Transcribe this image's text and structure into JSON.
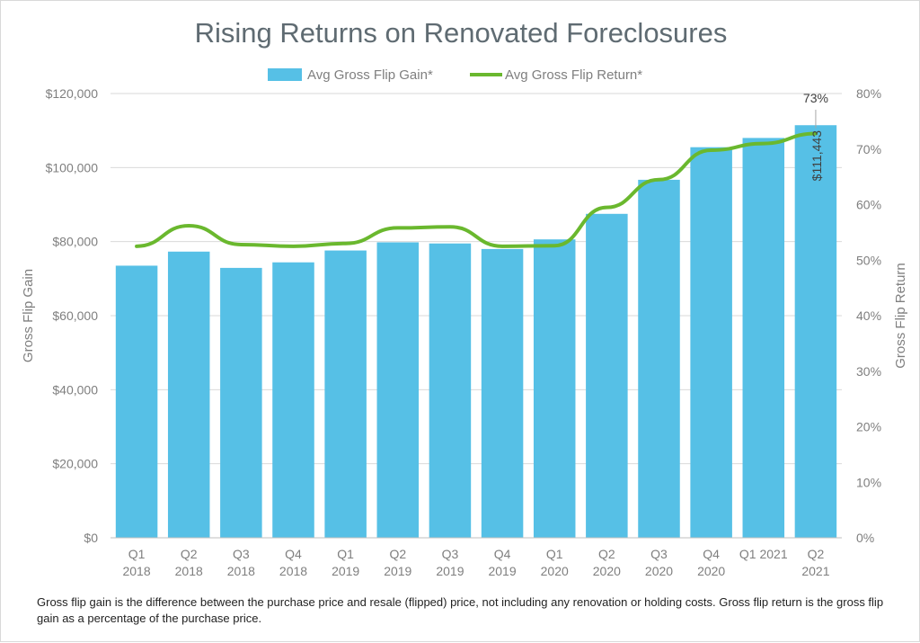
{
  "chart_data": {
    "type": "bar",
    "title": "Rising Returns on Renovated Foreclosures",
    "categories": [
      [
        "Q1",
        "2018"
      ],
      [
        "Q2",
        "2018"
      ],
      [
        "Q3",
        "2018"
      ],
      [
        "Q4",
        "2018"
      ],
      [
        "Q1",
        "2019"
      ],
      [
        "Q2",
        "2019"
      ],
      [
        "Q3",
        "2019"
      ],
      [
        "Q4",
        "2019"
      ],
      [
        "Q1",
        "2020"
      ],
      [
        "Q2",
        "2020"
      ],
      [
        "Q3",
        "2020"
      ],
      [
        "Q4",
        "2020"
      ],
      [
        "Q1 2021"
      ],
      [
        "Q2",
        "2021"
      ]
    ],
    "series": [
      {
        "name": "Avg Gross Flip Gain*",
        "type": "bar",
        "axis": "left",
        "color": "#56c0e6",
        "values": [
          73500,
          77300,
          72900,
          74400,
          77600,
          79800,
          79500,
          78000,
          80600,
          87500,
          96700,
          105500,
          108000,
          111443
        ]
      },
      {
        "name": "Avg Gross Flip Return*",
        "type": "line",
        "axis": "right",
        "color": "#6ab82e",
        "values": [
          52.5,
          56.2,
          52.8,
          52.5,
          53.0,
          55.8,
          56.0,
          52.5,
          52.6,
          59.5,
          64.5,
          69.8,
          71.0,
          72.8
        ]
      }
    ],
    "ylabel": "Gross Flip Gain",
    "ylim": [
      0,
      120000
    ],
    "yticks": [
      "$0",
      "$20,000",
      "$40,000",
      "$60,000",
      "$80,000",
      "$100,000",
      "$120,000"
    ],
    "y2label": "Gross Flip Return",
    "y2lim": [
      0,
      80
    ],
    "y2ticks": [
      "0%",
      "10%",
      "20%",
      "30%",
      "40%",
      "50%",
      "60%",
      "70%",
      "80%"
    ],
    "annotations": {
      "last_bar_label": "$111,443",
      "last_line_label": "73%"
    },
    "grid": true,
    "legend_position": "top-center"
  },
  "footnote": "Gross flip gain is the difference between the purchase price and resale (flipped) price, not including any renovation or holding costs. Gross flip return is the gross flip gain as a percentage of the purchase price."
}
